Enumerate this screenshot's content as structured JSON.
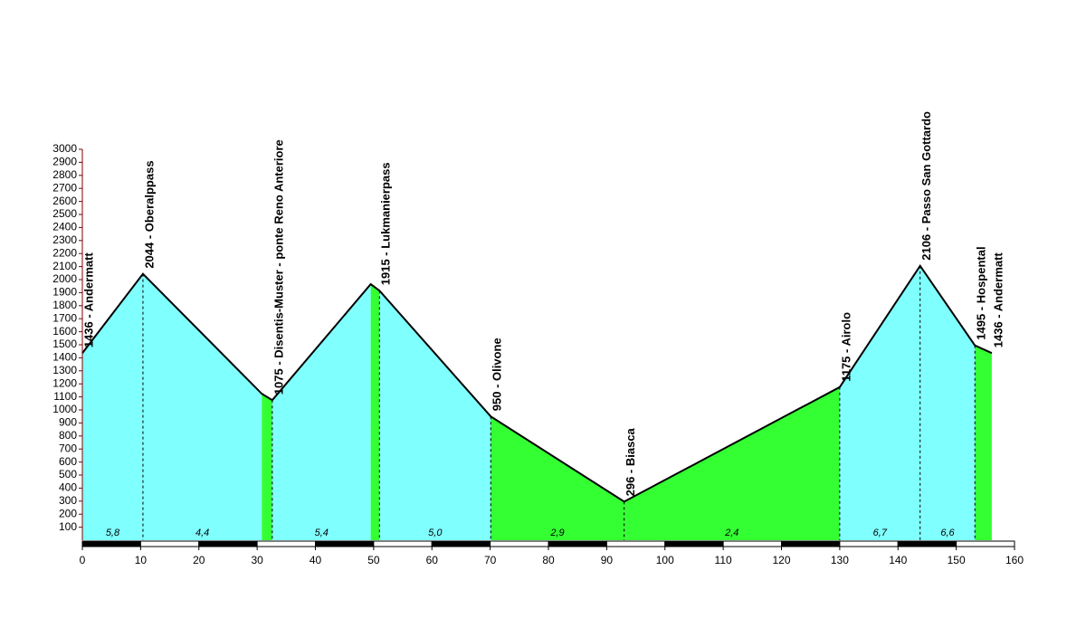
{
  "chart_data": {
    "type": "area",
    "x": [
      0,
      10.4,
      30.8,
      32.6,
      49.5,
      51.0,
      70.1,
      93.0,
      130.0,
      143.8,
      153.2,
      156.1
    ],
    "values": [
      1436,
      2044,
      1124,
      1075,
      1965,
      1915,
      950,
      296,
      1175,
      2106,
      1495,
      1436
    ],
    "point_labels": [
      "1436 - Andermatt",
      "2044 - Oberalppass",
      null,
      "1075 - Disentis-Muster - ponte Reno Anteriore",
      null,
      "1915 - Lukmanierpass",
      "950 - Olivone",
      "296 - Biasca",
      "1175 - Airolo",
      "2106 - Passo San Gottardo",
      "1495 - Hospental",
      "1436 - Andermatt"
    ],
    "segment_colors": [
      "#80ffff",
      "#80ffff",
      "#33ff33",
      "#80ffff",
      "#33ff33",
      "#80ffff",
      "#33ff33",
      "#33ff33",
      "#80ffff",
      "#80ffff",
      "#33ff33"
    ],
    "gradients": [
      5.8,
      4.4,
      null,
      5.4,
      null,
      5.0,
      2.9,
      2.4,
      6.7,
      6.6,
      null
    ],
    "gradient_labels": [
      "5,8",
      "4,4",
      null,
      "5,4",
      null,
      "5,0",
      "2,9",
      "2,4",
      "6,7",
      "6,6",
      null
    ],
    "xlim": [
      0,
      160
    ],
    "xticks": [
      0,
      10,
      20,
      30,
      40,
      50,
      60,
      70,
      80,
      90,
      100,
      110,
      120,
      130,
      140,
      150,
      160
    ],
    "ylim": [
      0,
      3000
    ],
    "yticks": [
      100,
      200,
      300,
      400,
      500,
      600,
      700,
      800,
      900,
      1000,
      1100,
      1200,
      1300,
      1400,
      1500,
      1600,
      1700,
      1800,
      1900,
      2000,
      2100,
      2200,
      2300,
      2400,
      2500,
      2600,
      2700,
      2800,
      2900,
      3000
    ]
  }
}
